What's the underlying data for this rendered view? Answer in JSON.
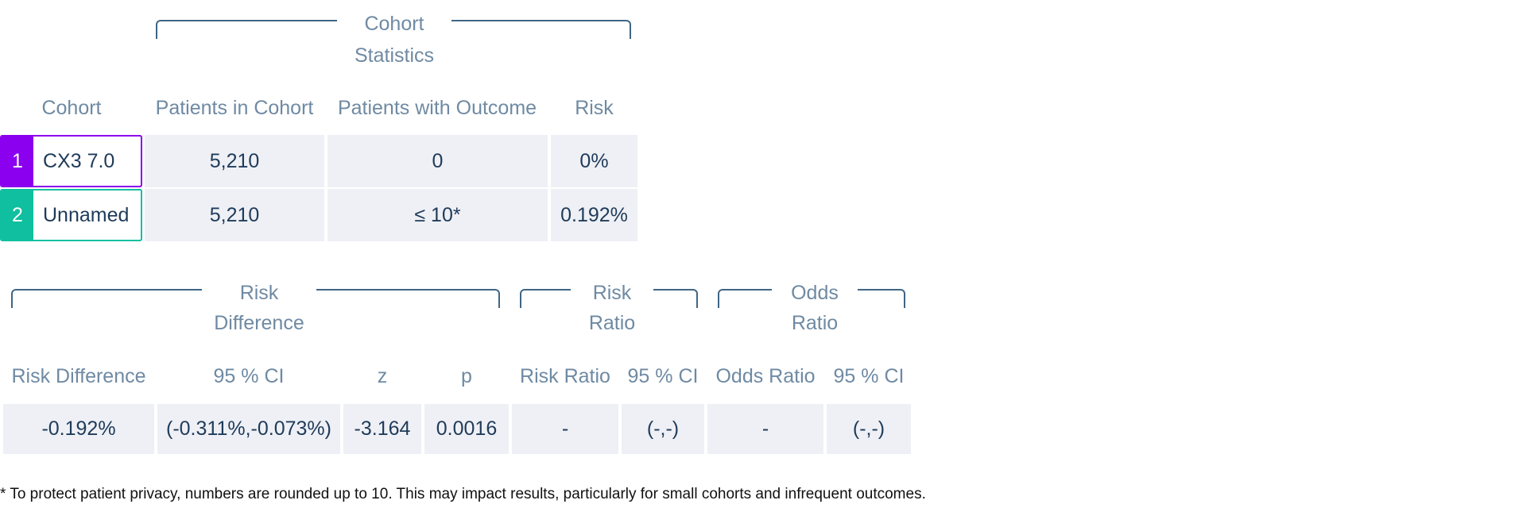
{
  "cohort_table": {
    "group_title": "Cohort\nStatistics",
    "headers": [
      "Cohort",
      "Patients in Cohort",
      "Patients with Outcome",
      "Risk"
    ],
    "rows": [
      {
        "num": "1",
        "name": "CX3 7.0",
        "color": "#8b00ee",
        "patients": "5,210",
        "outcome": "0",
        "risk": "0%"
      },
      {
        "num": "2",
        "name": "Unnamed",
        "color": "#0fbf9f",
        "patients": "5,210",
        "outcome": "≤ 10*",
        "risk": "0.192%"
      }
    ]
  },
  "comparison_table": {
    "groups": {
      "risk_difference": "Risk\nDifference",
      "risk_ratio": "Risk\nRatio",
      "odds_ratio": "Odds\nRatio"
    },
    "headers": [
      "Risk Difference",
      "95 % CI",
      "z",
      "p",
      "Risk Ratio",
      "95 % CI",
      "Odds Ratio",
      "95 % CI"
    ],
    "values": [
      "-0.192%",
      "(-0.311%,-0.073%)",
      "-3.164",
      "0.0016",
      "-",
      "(-,-)",
      "-",
      "(-,-)"
    ]
  },
  "footnote": "* To protect patient privacy, numbers are rounded up to 10. This may impact results, particularly for small cohorts and infrequent outcomes.",
  "colors": {
    "header_text": "#6f8aa3",
    "value_text": "#1f3b5a",
    "cell_bg": "#eef0f5",
    "bracket": "#3f6585"
  }
}
